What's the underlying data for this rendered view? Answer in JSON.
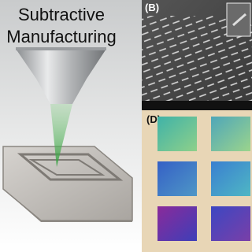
{
  "left_panel": {
    "title_lines": [
      "Subtractive",
      "Manufacturing"
    ]
  },
  "panel_b": {
    "label": "(B)"
  },
  "panel_d": {
    "label": "(D)"
  }
}
